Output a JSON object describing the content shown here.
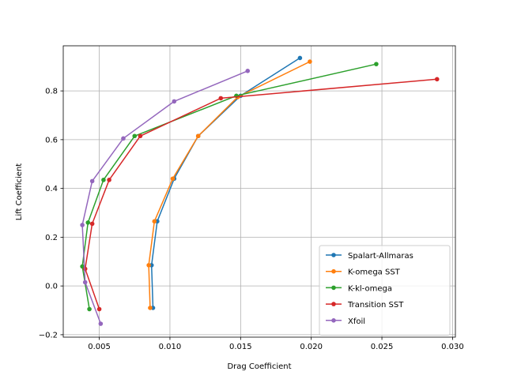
{
  "chart_data": {
    "type": "line",
    "title": "",
    "xlabel": "Drag Coefficient",
    "ylabel": "Lift Coefficient",
    "xlim": [
      0.00245,
      0.0302
    ],
    "ylim": [
      -0.21,
      0.985
    ],
    "xticks": [
      0.005,
      0.01,
      0.015,
      0.02,
      0.025,
      0.03
    ],
    "xtick_labels": [
      "0.005",
      "0.010",
      "0.015",
      "0.020",
      "0.025",
      "0.030"
    ],
    "yticks": [
      -0.2,
      0.0,
      0.2,
      0.4,
      0.6,
      0.8
    ],
    "ytick_labels": [
      "−0.2",
      "0.0",
      "0.2",
      "0.4",
      "0.6",
      "0.8"
    ],
    "grid": true,
    "legend_position": "lower-right",
    "series": [
      {
        "name": "Spalart-Allmaras",
        "color": "#1f77b4",
        "x": [
          0.0088,
          0.0087,
          0.0091,
          0.0103,
          0.012,
          0.015,
          0.0192
        ],
        "y": [
          -0.09,
          0.085,
          0.265,
          0.44,
          0.615,
          0.78,
          0.935
        ]
      },
      {
        "name": "K-omega SST",
        "color": "#ff7f0e",
        "x": [
          0.0086,
          0.0085,
          0.0089,
          0.0102,
          0.012,
          0.0148,
          0.0199
        ],
        "y": [
          -0.09,
          0.085,
          0.265,
          0.44,
          0.615,
          0.775,
          0.92
        ]
      },
      {
        "name": "K-kl-omega",
        "color": "#2ca02c",
        "x": [
          0.0043,
          0.0038,
          0.0042,
          0.0053,
          0.0075,
          0.0147,
          0.0246
        ],
        "y": [
          -0.095,
          0.08,
          0.26,
          0.435,
          0.615,
          0.78,
          0.91
        ]
      },
      {
        "name": "Transition SST",
        "color": "#d62728",
        "x": [
          0.005,
          0.004,
          0.0045,
          0.0057,
          0.0079,
          0.0136,
          0.0289
        ],
        "y": [
          -0.095,
          0.07,
          0.255,
          0.435,
          0.615,
          0.77,
          0.848
        ]
      },
      {
        "name": "Xfoil",
        "color": "#9467bd",
        "x": [
          0.0051,
          0.004,
          0.0038,
          0.0045,
          0.0067,
          0.0103,
          0.0155
        ],
        "y": [
          -0.155,
          0.015,
          0.25,
          0.43,
          0.605,
          0.757,
          0.882
        ]
      }
    ]
  }
}
